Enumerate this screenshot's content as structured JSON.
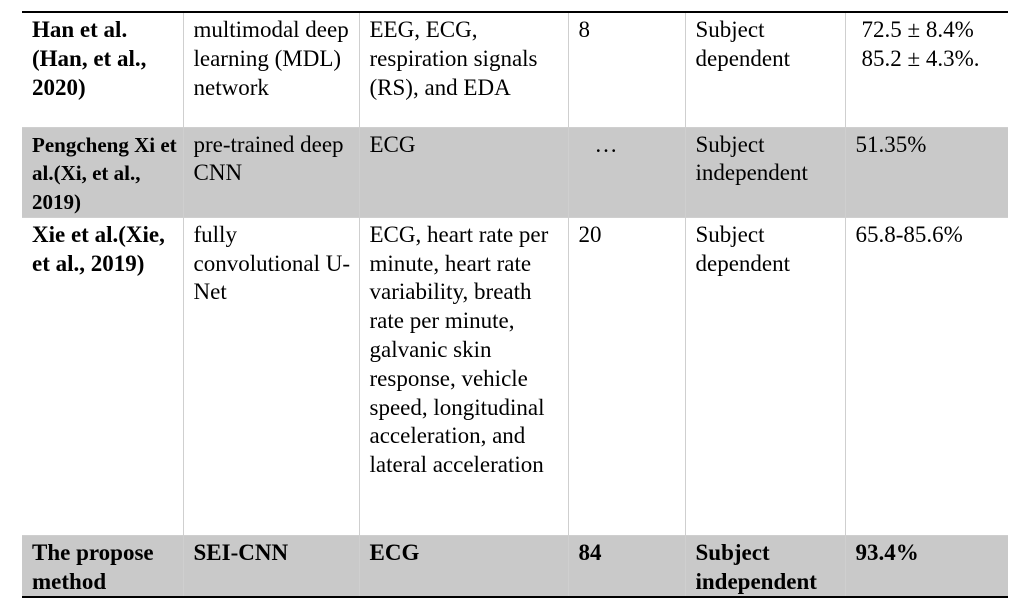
{
  "rows": [
    {
      "author": "Han et al.(Han, et al., 2020)",
      "method": "multimodal deep learning (MDL) network",
      "signals": "EEG, ECG, respiration signals (RS), and EDA",
      "subjects": "8",
      "validation": "Subject dependent",
      "accuracy": [
        "72.5 ± 8.4%",
        "85.2 ± 4.3%."
      ]
    },
    {
      "author": "Pengcheng Xi et al.(Xi, et al., 2019)",
      "method": "pre-trained deep CNN",
      "signals": "ECG",
      "subjects": "…",
      "validation": "Subject independent",
      "accuracy": [
        "51.35%"
      ]
    },
    {
      "author": "Xie et al.(Xie, et al., 2019)",
      "method": "fully convolutional U-Net",
      "signals": "ECG, heart rate per minute, heart rate variability, breath rate per minute, galvanic skin response, vehicle speed, longitudinal acceleration, and lateral acceleration",
      "subjects": "20",
      "validation": "Subject dependent",
      "accuracy": [
        "65.8-85.6%"
      ]
    },
    {
      "author": "The propose method",
      "method": "SEI-CNN",
      "signals": "ECG",
      "subjects": "84",
      "validation": "Subject independent",
      "accuracy": [
        "93.4%"
      ]
    }
  ]
}
